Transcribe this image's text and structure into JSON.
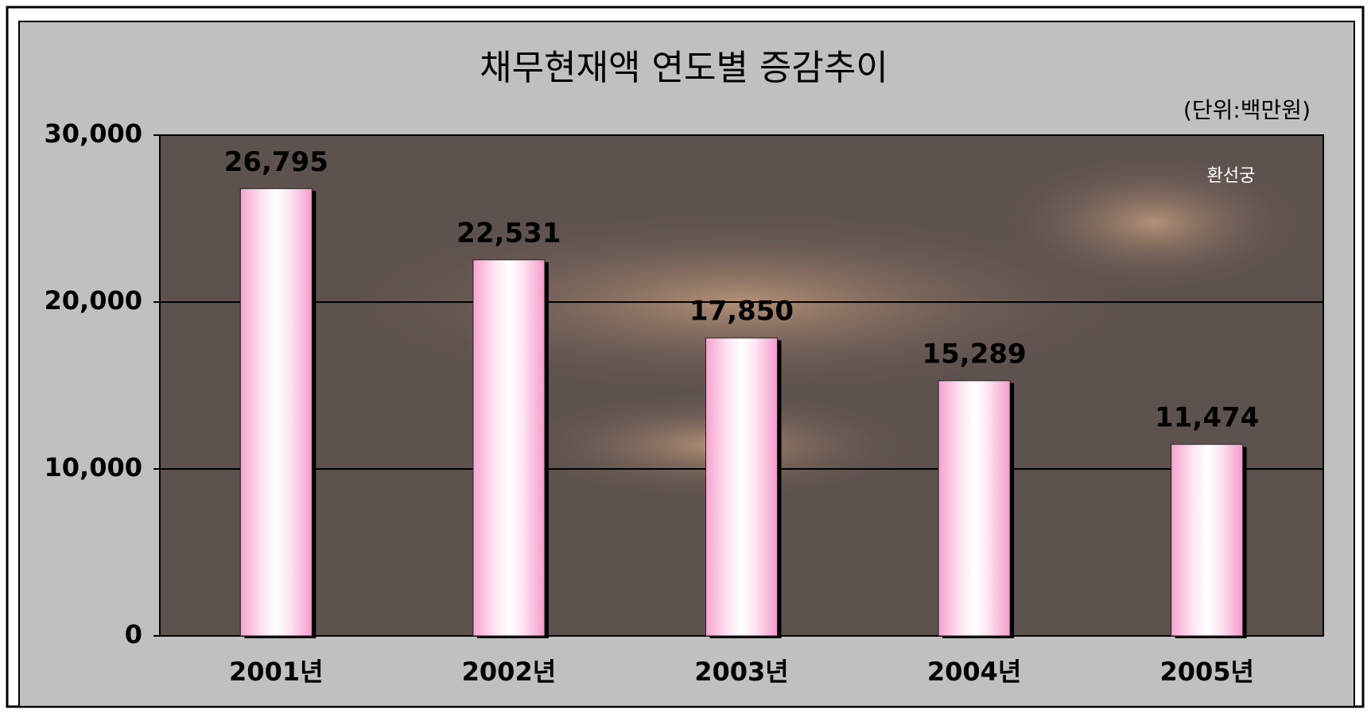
{
  "chart_data": {
    "type": "bar",
    "title": "채무현재액 연도별 증감추이",
    "subtitle": "(단위:백만원)",
    "annotation": "환선궁",
    "categories": [
      "2001년",
      "2002년",
      "2003년",
      "2004년",
      "2005년"
    ],
    "values": [
      26795,
      22531,
      17850,
      15289,
      11474
    ],
    "value_labels": [
      "26,795",
      "22,531",
      "17,850",
      "15,289",
      "11,474"
    ],
    "color": "#f4a6cf",
    "ylim": [
      0,
      30000
    ],
    "yticks": [
      0,
      {
        "value": 10000,
        "label": "10,000"
      },
      {
        "value": 20000,
        "label": "20,000"
      },
      {
        "value": 30000,
        "label": "30,000"
      }
    ],
    "grid": true
  }
}
